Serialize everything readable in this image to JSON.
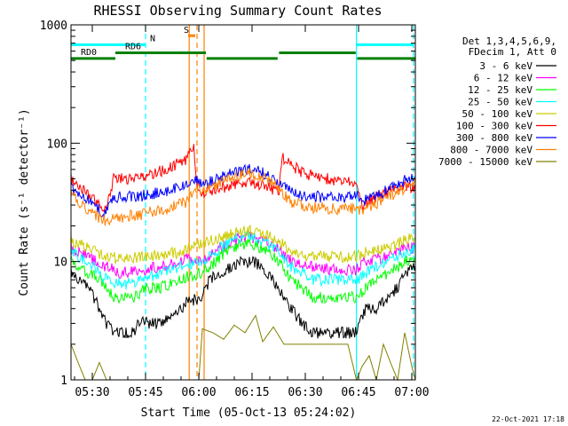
{
  "chart_data": {
    "type": "line",
    "title": "RHESSI Observing Summary Count Rates",
    "xlabel": "Start Time (05-Oct-13 05:24:02)",
    "ylabel": "Count Rate (s⁻¹ detector⁻¹)",
    "x_unit": "minutes after 05:24:02",
    "xlim": [
      0,
      97
    ],
    "ylim": [
      1,
      1000
    ],
    "y_scale": "log",
    "grid": false,
    "legend_position": "right",
    "x_ticks": [
      {
        "x": 6,
        "label": "05:30"
      },
      {
        "x": 21,
        "label": "05:45"
      },
      {
        "x": 36,
        "label": "06:00"
      },
      {
        "x": 51,
        "label": "06:15"
      },
      {
        "x": 66,
        "label": "06:30"
      },
      {
        "x": 81,
        "label": "06:45"
      },
      {
        "x": 96,
        "label": "07:00"
      }
    ],
    "y_ticks": [
      {
        "y": 1,
        "label": "1"
      },
      {
        "y": 10,
        "label": "10"
      },
      {
        "y": 100,
        "label": "100"
      },
      {
        "y": 1000,
        "label": "1000"
      }
    ],
    "legend_header": [
      "Det 1,3,4,5,6,9,",
      "FDecim 1, Att 0"
    ],
    "series": [
      {
        "name": "3 - 6 keV",
        "color": "#000000",
        "x": [
          0,
          5,
          8,
          10,
          12,
          14,
          16,
          18,
          19.5,
          22,
          25,
          28,
          31,
          32.5,
          37,
          39,
          42,
          45,
          48,
          51,
          54,
          57,
          58.6,
          62,
          65,
          68,
          71,
          74,
          77,
          80.4,
          83,
          86,
          89,
          92,
          94,
          97
        ],
        "y": [
          8,
          6,
          4,
          3,
          2.5,
          2.5,
          2.5,
          2.6,
          3.2,
          3,
          3,
          3.5,
          4,
          4.5,
          5,
          7,
          8,
          9,
          10,
          10,
          9,
          7,
          6,
          4,
          3,
          2.5,
          2.5,
          2.5,
          2.5,
          2.5,
          4,
          4,
          5,
          6,
          8,
          9
        ]
      },
      {
        "name": "6 - 12 keV",
        "color": "#ff00ff",
        "x": [
          0,
          5,
          10,
          14,
          19.5,
          25,
          31,
          32.5,
          37,
          42,
          48,
          51,
          54,
          58.6,
          62,
          68,
          74,
          80.4,
          83,
          89,
          94,
          97
        ],
        "y": [
          13,
          11,
          9,
          8,
          8.5,
          9,
          10,
          11,
          10,
          13,
          16,
          16,
          15,
          13,
          10,
          9,
          8.5,
          8.5,
          10,
          11,
          13,
          13
        ]
      },
      {
        "name": "12 - 25 keV",
        "color": "#00ff00",
        "x": [
          0,
          5,
          8,
          10,
          12,
          14,
          16,
          18,
          19.5,
          22,
          25,
          28,
          31,
          32.5,
          37,
          39,
          42,
          45,
          48,
          51,
          54,
          57,
          58.6,
          62,
          65,
          68,
          71,
          74,
          77,
          80.4,
          83,
          86,
          89,
          92,
          94,
          97
        ],
        "y": [
          10,
          8,
          7,
          6,
          5,
          5,
          5,
          5,
          5.5,
          6,
          6,
          6.5,
          7,
          7.5,
          8,
          9,
          11,
          13,
          14,
          14,
          13,
          11,
          10,
          7,
          6,
          5,
          5,
          5,
          5,
          5,
          6,
          7,
          8,
          9,
          10,
          11
        ]
      },
      {
        "name": "25 - 50 keV",
        "color": "#00ffff",
        "x": [
          0,
          5,
          8,
          10,
          12,
          14,
          16,
          18,
          19.5,
          22,
          25,
          28,
          31,
          32.5,
          37,
          39,
          42,
          45,
          48,
          51,
          54,
          57,
          58.6,
          62,
          65,
          68,
          71,
          74,
          77,
          80.4,
          83,
          86,
          89,
          92,
          94,
          97
        ],
        "y": [
          12,
          10,
          8,
          7,
          6.5,
          6.5,
          6.5,
          6.5,
          7,
          7.5,
          8,
          8.5,
          9,
          9.5,
          10,
          11,
          13,
          15,
          16,
          16,
          15,
          13,
          12,
          9,
          8,
          7,
          7,
          7,
          7,
          7,
          8,
          9,
          10,
          11,
          12,
          13
        ]
      },
      {
        "name": "50 - 100 keV",
        "color": "#cccc00",
        "x": [
          0,
          5,
          10,
          14,
          19.5,
          25,
          31,
          32.5,
          37,
          42,
          48,
          51,
          54,
          58.6,
          62,
          68,
          74,
          80.4,
          83,
          89,
          94,
          97
        ],
        "y": [
          15,
          13,
          11,
          10.5,
          11,
          11.5,
          12,
          13,
          14,
          16,
          18,
          18,
          17,
          15,
          12,
          11,
          11,
          11,
          12,
          13,
          15,
          16
        ]
      },
      {
        "name": "100 - 300 keV",
        "color": "#ff0000",
        "x": [
          0,
          2,
          4,
          6,
          8,
          9.6,
          12,
          16,
          19.5,
          22,
          25,
          28,
          30,
          32.5,
          34.6,
          35.5,
          37,
          40,
          45,
          50,
          54,
          57,
          58.6,
          59.5,
          62,
          66,
          72,
          78,
          80.4,
          82,
          86,
          90,
          94,
          97
        ],
        "y": [
          50,
          45,
          40,
          35,
          30,
          28,
          50,
          50,
          52,
          55,
          58,
          62,
          68,
          70,
          100,
          40,
          38,
          40,
          44,
          46,
          44,
          40,
          38,
          75,
          65,
          55,
          50,
          48,
          48,
          30,
          35,
          40,
          45,
          40
        ]
      },
      {
        "name": "300 - 800 keV",
        "color": "#0000ff",
        "x": [
          0,
          2,
          4,
          6,
          8,
          9.6,
          12,
          16,
          19.5,
          22,
          25,
          28,
          30,
          32.5,
          35.5,
          37,
          40,
          45,
          50,
          54,
          57,
          58.6,
          59.5,
          62,
          66,
          72,
          78,
          80.4,
          82,
          86,
          90,
          94,
          97
        ],
        "y": [
          42,
          38,
          34,
          30,
          27,
          25,
          35,
          35,
          35.5,
          37,
          38,
          40,
          42,
          45,
          48,
          46,
          48,
          55,
          60,
          56,
          50,
          46,
          46,
          40,
          36,
          35,
          35,
          36,
          32,
          36,
          42,
          48,
          52
        ]
      },
      {
        "name": "800 - 7000 keV",
        "color": "#ff8000",
        "x": [
          0,
          2,
          4,
          6,
          8,
          9.6,
          12,
          16,
          19.5,
          22,
          25,
          28,
          30,
          32.5,
          35.5,
          37,
          40,
          45,
          50,
          54,
          57,
          58.6,
          59.5,
          62,
          66,
          72,
          78,
          80.4,
          82,
          86,
          90,
          94,
          97
        ],
        "y": [
          36,
          32,
          28,
          25,
          23,
          22,
          23,
          24,
          25,
          26,
          27,
          28,
          30,
          32,
          42,
          40,
          42,
          50,
          56,
          52,
          45,
          40,
          38,
          32,
          29,
          28,
          28,
          28,
          27,
          31,
          36,
          42,
          46
        ]
      },
      {
        "name": "7000 - 15000 keV",
        "color": "#808000",
        "x": [
          0,
          2,
          4,
          6,
          8,
          10,
          12,
          15,
          18,
          21,
          24,
          28,
          31,
          33,
          36,
          37,
          40,
          43,
          46,
          49,
          52,
          54,
          57,
          60,
          63,
          66,
          69,
          72,
          75,
          78,
          80.4,
          82,
          84,
          86,
          88,
          90,
          92,
          94,
          96,
          97
        ],
        "y": [
          2,
          1.4,
          1,
          1,
          1.4,
          1,
          1,
          1,
          1,
          1,
          1,
          1,
          1,
          1,
          1,
          2.7,
          2.5,
          2.2,
          2.9,
          2.5,
          3.5,
          2.1,
          2.8,
          2,
          2,
          2,
          2,
          2,
          2,
          2,
          1,
          1.3,
          1.6,
          1,
          2,
          1.4,
          1,
          2.5,
          1.3,
          1
        ]
      }
    ],
    "annotations": [
      {
        "label": "N",
        "x_start": 0,
        "x_end": 21,
        "level": 680,
        "color": "#00ffff"
      },
      {
        "label": "",
        "x_start": 80.4,
        "x_end": 96.5,
        "level": 680,
        "color": "#00ffff"
      },
      {
        "label": "S",
        "x_start": 33,
        "x_end": 35,
        "level": 810,
        "color": "#ff8000"
      },
      {
        "label": "RD0",
        "x_start": 0,
        "x_end": 12.5,
        "level": 520,
        "color": "#008000"
      },
      {
        "label": "RD6",
        "x_start": 12.5,
        "x_end": 38,
        "level": 580,
        "color": "#008000"
      },
      {
        "label": "",
        "x_start": 38.2,
        "x_end": 58.2,
        "level": 520,
        "color": "#008000"
      },
      {
        "label": "",
        "x_start": 58.6,
        "x_end": 80.2,
        "level": 580,
        "color": "#008000"
      },
      {
        "label": "",
        "x_start": 80.6,
        "x_end": 97,
        "level": 520,
        "color": "#008000"
      }
    ],
    "vertical_markers": [
      {
        "x": 21,
        "color": "#00ffff",
        "style": "dashed"
      },
      {
        "x": 80.4,
        "color": "#00ffff",
        "style": "solid"
      },
      {
        "x": 96.5,
        "color": "#00ffff",
        "style": "dashed"
      },
      {
        "x": 33.3,
        "color": "#ff8000",
        "style": "solid"
      },
      {
        "x": 35.5,
        "color": "#ff8000",
        "style": "dashed"
      },
      {
        "x": 37.5,
        "color": "#ff8000",
        "style": "solid"
      }
    ],
    "footer": "22-Oct-2021 17:18"
  }
}
